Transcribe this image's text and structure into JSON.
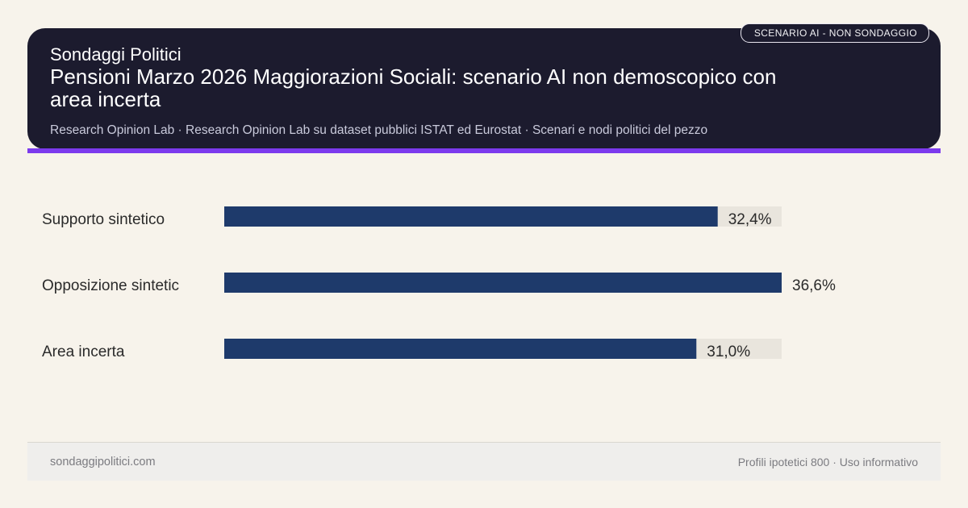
{
  "header": {
    "brand": "Sondaggi Politici",
    "title": "Pensioni Marzo 2026 Maggiorazioni Sociali: scenario AI non demoscopico con area incerta",
    "subtitle": "Research Opinion Lab · Research Opinion Lab su dataset pubblici ISTAT ed Eurostat · Scenari e nodi politici del pezzo",
    "badge": "SCENARIO AI - NON SONDAGGIO"
  },
  "chart_data": {
    "type": "bar",
    "orientation": "horizontal",
    "categories": [
      "Supporto sintetico",
      "Opposizione sintetic",
      "Area incerta"
    ],
    "values": [
      32.4,
      36.6,
      31.0
    ],
    "value_labels": [
      "32,4%",
      "36,6%",
      "31,0%"
    ],
    "xlim": [
      0,
      36.6
    ],
    "grid": false,
    "colors": {
      "bar": "#1e3a6b",
      "track": "#e9e5dd",
      "label": "#2a2a2a"
    }
  },
  "footer": {
    "site": "sondaggipolitici.com",
    "meta": "Profili ipotetici 800 · Uso informativo"
  },
  "colors": {
    "header_bg": "#1c1b2e",
    "accent": "#7c3aed",
    "page_bg": "#f7f3eb"
  }
}
